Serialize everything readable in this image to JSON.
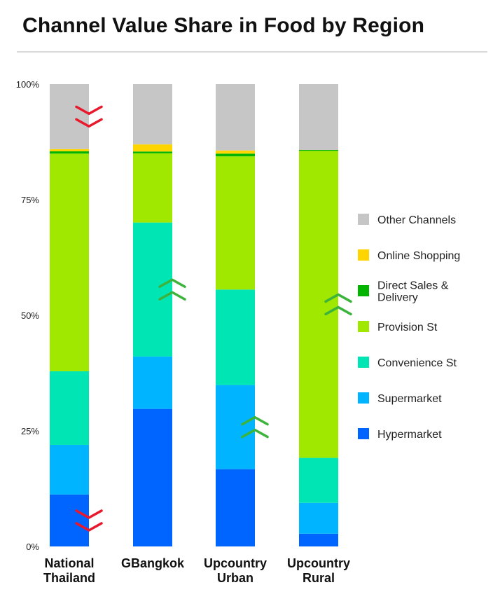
{
  "chart_data": {
    "type": "bar",
    "stacked": true,
    "title": "Channel Value Share in Food by Region",
    "xlabel": "",
    "ylabel": "",
    "ylim": [
      0,
      100
    ],
    "yticks": [
      0,
      25,
      50,
      75,
      100
    ],
    "ytick_labels": [
      "0%",
      "25%",
      "50%",
      "75%",
      "100%"
    ],
    "grid": false,
    "legend_position": "right",
    "categories": [
      {
        "lines": [
          "National",
          "Thailand"
        ]
      },
      {
        "lines": [
          "GBangkok"
        ]
      },
      {
        "lines": [
          "Upcountry",
          "Urban"
        ]
      },
      {
        "lines": [
          "Upcountry",
          "Rural"
        ]
      }
    ],
    "series": [
      {
        "name": "Hypermarket",
        "color": "#0064ff",
        "values": [
          11.5,
          31,
          17,
          2.8
        ]
      },
      {
        "name": "Supermarket",
        "color": "#00b4ff",
        "values": [
          11,
          11.8,
          18.5,
          6.8
        ]
      },
      {
        "name": "Convenience St",
        "color": "#00e5b4",
        "values": [
          16.3,
          30.2,
          21,
          9.9
        ]
      },
      {
        "name": "Provision St",
        "color": "#a0e800",
        "values": [
          48.2,
          15.6,
          29.3,
          67.6
        ]
      },
      {
        "name": "Direct Sales & Delivery",
        "color": "#00b400",
        "values": [
          0.5,
          0.4,
          0.6,
          0.2
        ]
      },
      {
        "name": "Online Shopping",
        "color": "#ffd500",
        "values": [
          0.5,
          1.6,
          0.7,
          0
        ]
      },
      {
        "name": "Other Channels",
        "color": "#c6c6c6",
        "values": [
          14.4,
          13.6,
          14.6,
          14.5
        ]
      }
    ],
    "legend_order": [
      "Other Channels",
      "Online Shopping",
      "Direct Sales & Delivery",
      "Provision St",
      "Convenience St",
      "Supermarket",
      "Hypermarket"
    ],
    "annotations": [
      {
        "direction": "down",
        "color": "#e8192c",
        "category": 0,
        "series": "Other Channels"
      },
      {
        "direction": "down",
        "color": "#e8192c",
        "category": 0,
        "series": "Hypermarket"
      },
      {
        "direction": "up",
        "color": "#3cb43c",
        "category": 1,
        "series": "Convenience St"
      },
      {
        "direction": "up",
        "color": "#3cb43c",
        "category": 2,
        "series": "Supermarket"
      },
      {
        "direction": "up",
        "color": "#3cb43c",
        "category": 3,
        "series": "Provision St"
      }
    ]
  }
}
